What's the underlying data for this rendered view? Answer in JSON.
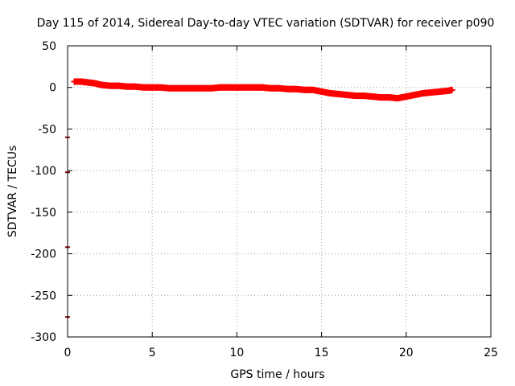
{
  "chart_data": {
    "type": "scatter",
    "title": "Day 115 of 2014, Sidereal Day-to-day VTEC variation (SDTVAR) for receiver p090",
    "xlabel": "GPS time / hours",
    "ylabel": "SDTVAR / TECUs",
    "xlim": [
      0,
      25
    ],
    "ylim": [
      -300,
      50
    ],
    "xticks": [
      "0",
      "5",
      "10",
      "15",
      "20",
      "25"
    ],
    "xtick_values": [
      0,
      5,
      10,
      15,
      20,
      25
    ],
    "yticks": [
      "50",
      "0",
      "-50",
      "-100",
      "-150",
      "-200",
      "-250",
      "-300"
    ],
    "ytick_values": [
      50,
      0,
      -50,
      -100,
      -150,
      -200,
      -250,
      -300
    ],
    "grid": true,
    "marker": "plus",
    "marker_color": "#ff0000",
    "outlier_color": "#8b0000",
    "series": [
      {
        "name": "SDTVAR",
        "x": [
          0.4,
          0.8,
          1.2,
          1.6,
          2.0,
          2.5,
          3.0,
          3.5,
          4.0,
          4.5,
          5.0,
          5.5,
          6.0,
          6.5,
          7.0,
          7.5,
          8.0,
          8.5,
          9.0,
          9.5,
          10.0,
          10.5,
          11.0,
          11.5,
          12.0,
          12.5,
          13.0,
          13.5,
          14.0,
          14.5,
          15.0,
          15.5,
          16.0,
          16.5,
          17.0,
          17.5,
          18.0,
          18.5,
          19.0,
          19.5,
          20.0,
          20.5,
          21.0,
          21.5,
          22.0,
          22.5,
          22.7
        ],
        "y": [
          7,
          7,
          6,
          5,
          3,
          2,
          2,
          1,
          1,
          0,
          0,
          0,
          -1,
          -1,
          -1,
          -1,
          -1,
          -1,
          0,
          0,
          0,
          0,
          0,
          0,
          -1,
          -1,
          -2,
          -2,
          -3,
          -3,
          -5,
          -7,
          -8,
          -9,
          -10,
          -10,
          -11,
          -12,
          -12,
          -13,
          -11,
          -9,
          -7,
          -6,
          -5,
          -4,
          -3
        ]
      },
      {
        "name": "outliers",
        "x": [
          0.0,
          0.0,
          0.0,
          0.0
        ],
        "y": [
          -60,
          -102,
          -192,
          -276
        ]
      }
    ]
  }
}
